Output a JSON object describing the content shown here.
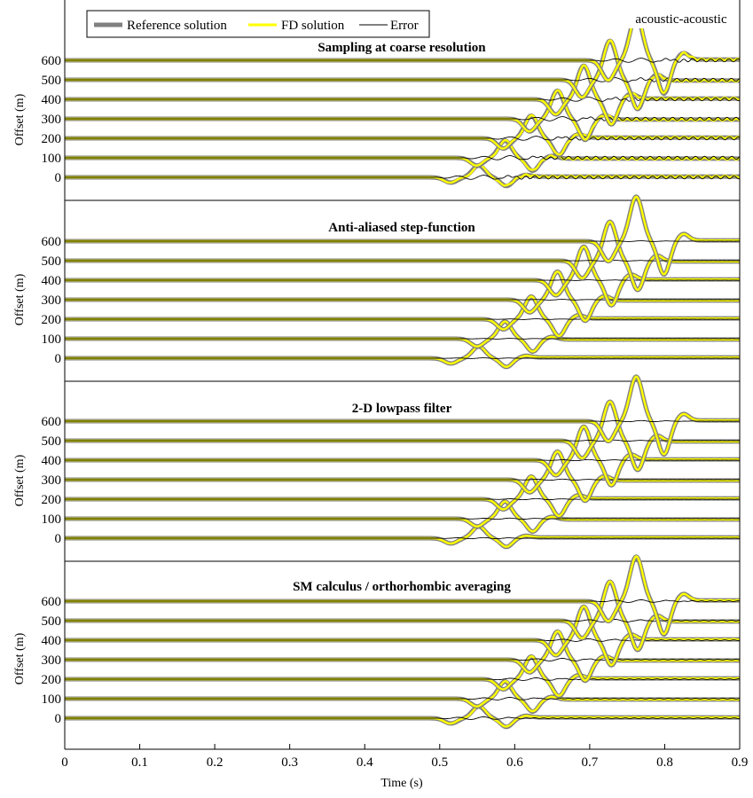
{
  "figure": {
    "x_axis_label": "Time (s)",
    "y_axis_label": "Offset (m)",
    "corner_annotation": "acoustic-acoustic"
  },
  "legend": {
    "reference_label": "Reference solution",
    "fd_label": "FD solution",
    "error_label": "Error"
  },
  "colors": {
    "reference": "#808080",
    "fd": "#ffff00",
    "fd_edge": "#e0d800",
    "error": "#000000",
    "axis": "#000000"
  },
  "chart_data": {
    "type": "line",
    "x_ticks": [
      0,
      0.1,
      0.2,
      0.3,
      0.4,
      0.5,
      0.6,
      0.7,
      0.8,
      0.9
    ],
    "x_tick_labels": [
      "0",
      "0.1",
      "0.2",
      "0.3",
      "0.4",
      "0.5",
      "0.6",
      "0.7",
      "0.8",
      "0.9"
    ],
    "xlim": [
      0,
      0.9
    ],
    "y_ticks": [
      0,
      100,
      200,
      300,
      400,
      500,
      600
    ],
    "y_tick_labels": [
      "0",
      "100",
      "200",
      "300",
      "400",
      "500",
      "600"
    ],
    "ylim_approx": [
      -100,
      800
    ],
    "offsets": [
      0,
      100,
      200,
      300,
      400,
      500,
      600
    ],
    "wavelet_arrival_time_s": [
      0.515,
      0.55,
      0.585,
      0.62,
      0.655,
      0.69,
      0.725
    ],
    "wavelet_trough_amplitude_m": -60,
    "wavelet_peak_amplitude_m": 270,
    "grid": false,
    "legend_position": "top-left",
    "panels": [
      {
        "title": "Sampling at coarse resolution",
        "error_amplitude_m": 35,
        "error_ringing_amplitude_m": 18
      },
      {
        "title": "Anti-aliased step-function",
        "error_amplitude_m": 6,
        "error_ringing_amplitude_m": 1
      },
      {
        "title": "2-D lowpass filter",
        "error_amplitude_m": 10,
        "error_ringing_amplitude_m": 1
      },
      {
        "title": "SM calculus / orthorhombic averaging",
        "error_amplitude_m": 22,
        "error_ringing_amplitude_m": 4
      }
    ]
  }
}
